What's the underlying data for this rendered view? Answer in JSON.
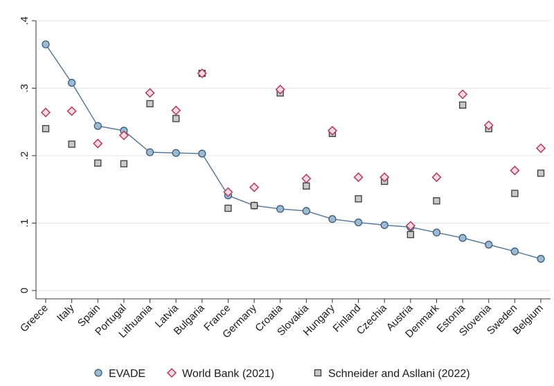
{
  "chart_data": {
    "type": "scatter",
    "categories": [
      "Greece",
      "Italy",
      "Spain",
      "Portugal",
      "Lithuania",
      "Latvia",
      "Bulgaria",
      "France",
      "Germany",
      "Croatia",
      "Slovakia",
      "Hungary",
      "Finland",
      "Czechia",
      "Austria",
      "Denmark",
      "Estonia",
      "Slovenia",
      "Sweden",
      "Belgium"
    ],
    "series": [
      {
        "name": "EVADE",
        "marker": "circle",
        "connected": true,
        "color": "#3b5a78",
        "fill": "#9dbad3",
        "values": [
          0.365,
          0.308,
          0.244,
          0.237,
          0.205,
          0.204,
          0.203,
          0.141,
          0.126,
          0.121,
          0.118,
          0.106,
          0.101,
          0.097,
          0.094,
          0.086,
          0.078,
          0.068,
          0.058,
          0.047
        ]
      },
      {
        "name": "World Bank (2021)",
        "marker": "diamond",
        "connected": false,
        "color": "#b33a5c",
        "fill": "#f3d9e2",
        "values": [
          0.264,
          0.266,
          0.218,
          0.23,
          0.293,
          0.267,
          0.322,
          0.146,
          0.153,
          0.298,
          0.166,
          0.237,
          0.168,
          0.168,
          0.096,
          0.168,
          0.291,
          0.245,
          0.178,
          0.211
        ]
      },
      {
        "name": "Schneider and Asllani (2022)",
        "marker": "square",
        "connected": false,
        "color": "#3a3a3a",
        "fill": "#c8c8c8",
        "values": [
          0.24,
          0.217,
          0.189,
          0.188,
          0.277,
          0.255,
          0.322,
          0.122,
          0.126,
          0.293,
          0.155,
          0.233,
          0.136,
          0.162,
          0.083,
          0.133,
          0.275,
          0.24,
          0.144,
          0.174
        ]
      }
    ],
    "y_ticks": [
      {
        "value": 0,
        "label": "0"
      },
      {
        "value": 0.1,
        "label": ".1"
      },
      {
        "value": 0.2,
        "label": ".2"
      },
      {
        "value": 0.3,
        "label": ".3"
      },
      {
        "value": 0.4,
        "label": ".4"
      }
    ],
    "ylim": [
      0,
      0.4
    ],
    "grid": "horizontal",
    "legend_position": "bottom"
  }
}
